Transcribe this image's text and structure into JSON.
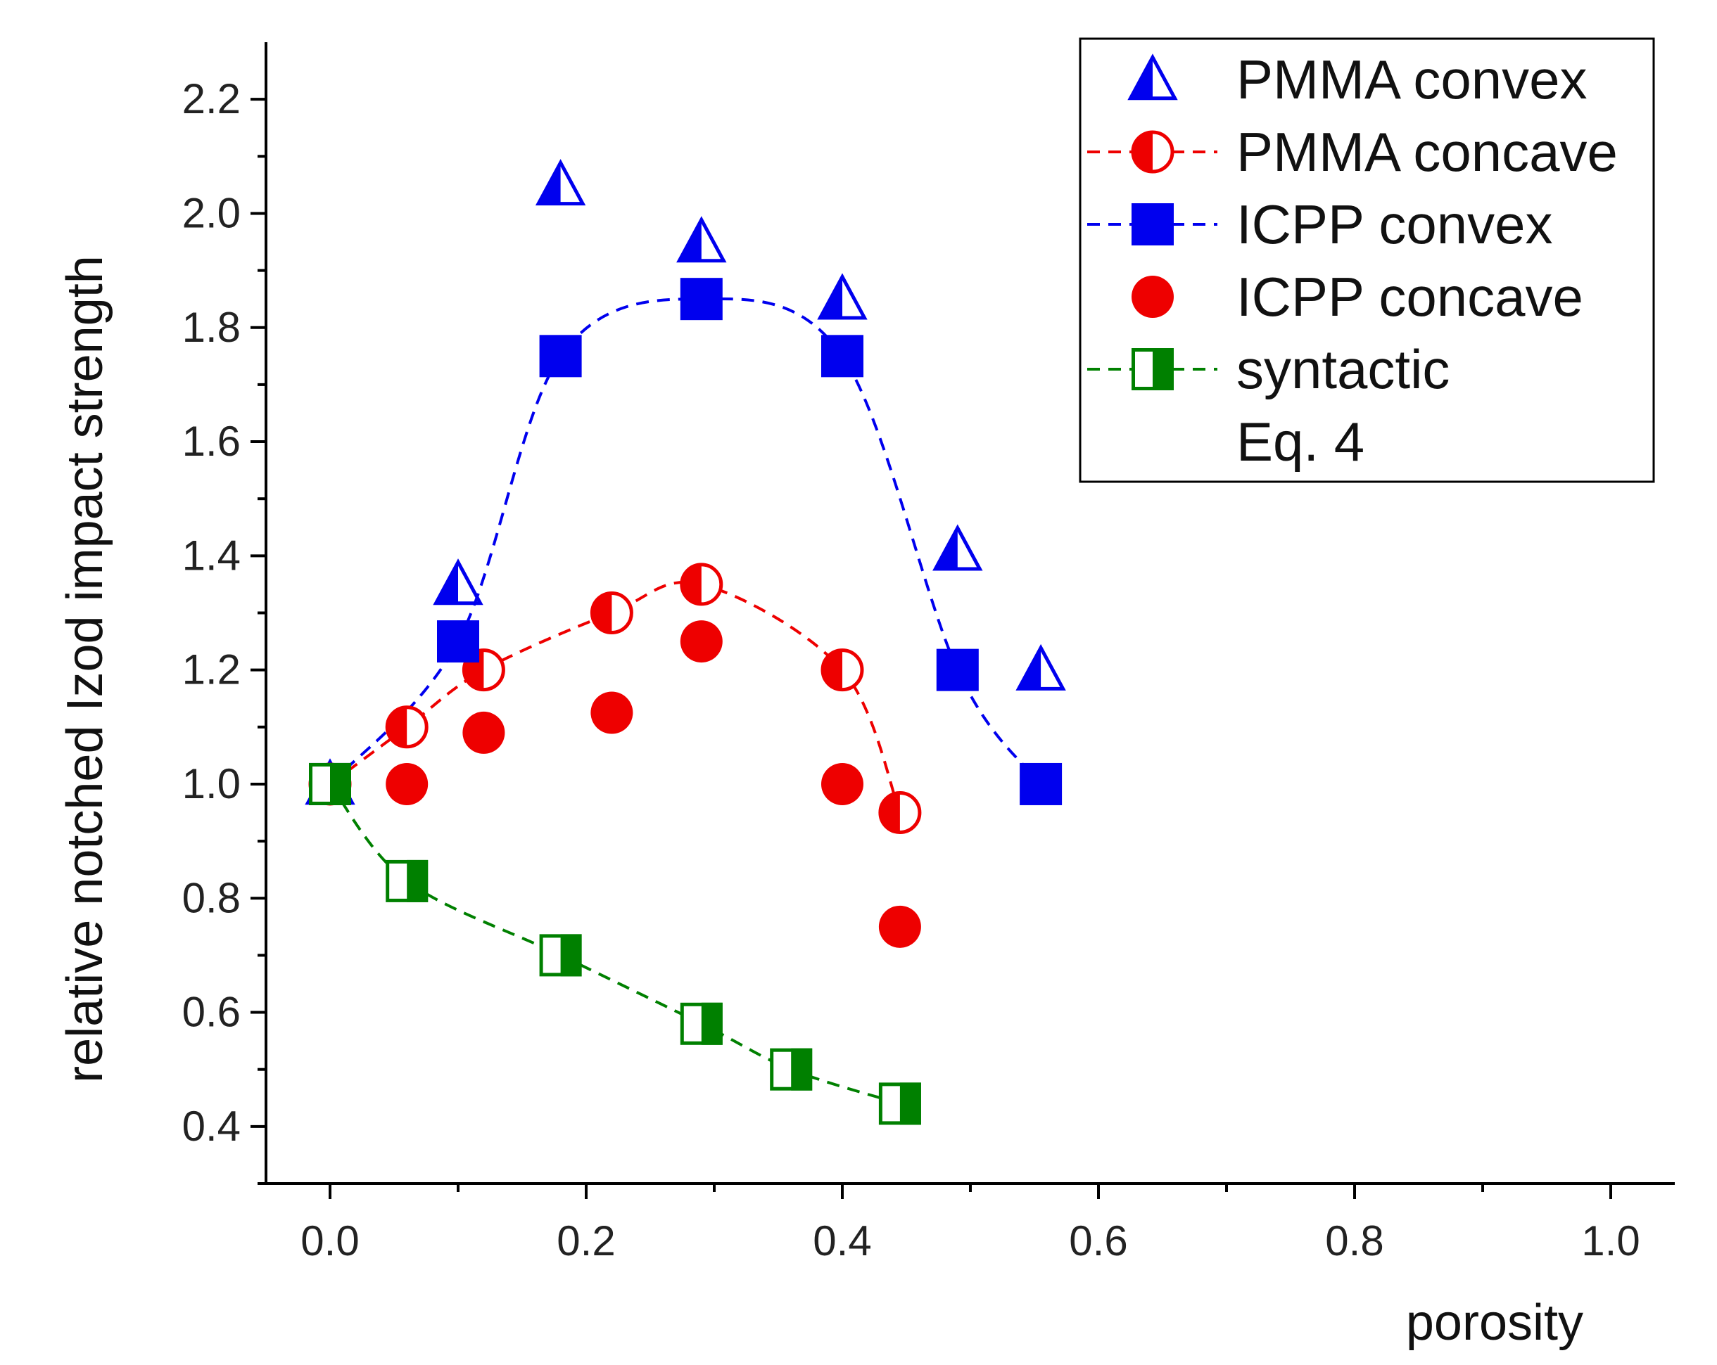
{
  "chart_data": {
    "type": "scatter",
    "title": "",
    "xlabel": "porosity",
    "ylabel": "relative notched Izod impact strength",
    "xlim": [
      -0.05,
      1.05
    ],
    "ylim": [
      0.3,
      2.3
    ],
    "xticks": [
      0.0,
      0.2,
      0.4,
      0.6,
      0.8,
      1.0
    ],
    "xtick_labels": [
      "0.0",
      "0.2",
      "0.4",
      "0.6",
      "0.8",
      "1.0"
    ],
    "yticks": [
      0.4,
      0.6,
      0.8,
      1.0,
      1.2,
      1.4,
      1.6,
      1.8,
      2.0,
      2.2
    ],
    "ytick_labels": [
      "0.4",
      "0.6",
      "0.8",
      "1.0",
      "1.2",
      "1.4",
      "1.6",
      "1.8",
      "2.0",
      "2.2"
    ],
    "legend_position": "top-right",
    "grid": false,
    "series": [
      {
        "name": "PMMA convex",
        "marker": "half-triangle",
        "color": "#0000ee",
        "line": false,
        "x": [
          0.0,
          0.1,
          0.18,
          0.29,
          0.4,
          0.49,
          0.555
        ],
        "y": [
          1.0,
          1.35,
          2.05,
          1.95,
          1.85,
          1.41,
          1.2
        ]
      },
      {
        "name": "PMMA concave",
        "marker": "half-circle",
        "color": "#ee0000",
        "line": true,
        "x": [
          0.0,
          0.06,
          0.12,
          0.22,
          0.29,
          0.4,
          0.445
        ],
        "y": [
          1.0,
          1.1,
          1.2,
          1.3,
          1.35,
          1.2,
          0.95
        ]
      },
      {
        "name": "ICPP convex",
        "marker": "square",
        "color": "#0000ee",
        "line": true,
        "x": [
          0.0,
          0.1,
          0.18,
          0.29,
          0.4,
          0.49,
          0.555
        ],
        "y": [
          1.0,
          1.25,
          1.75,
          1.85,
          1.75,
          1.2,
          1.0
        ]
      },
      {
        "name": "ICPP concave",
        "marker": "circle",
        "color": "#ee0000",
        "line": false,
        "x": [
          0.0,
          0.06,
          0.12,
          0.22,
          0.29,
          0.4,
          0.445
        ],
        "y": [
          1.0,
          1.0,
          1.09,
          1.125,
          1.25,
          1.0,
          0.75
        ]
      },
      {
        "name": "syntactic",
        "marker": "half-square",
        "color": "#008000",
        "line": true,
        "x": [
          0.0,
          0.06,
          0.18,
          0.29,
          0.36,
          0.445
        ],
        "y": [
          1.0,
          0.83,
          0.7,
          0.58,
          0.5,
          0.44
        ]
      }
    ],
    "legend": [
      {
        "label": "PMMA convex",
        "marker": "half-triangle",
        "color": "#0000ee",
        "line": false
      },
      {
        "label": "PMMA concave",
        "marker": "half-circle",
        "color": "#ee0000",
        "line": true
      },
      {
        "label": "ICPP convex",
        "marker": "square",
        "color": "#0000ee",
        "line": true
      },
      {
        "label": "ICPP concave",
        "marker": "circle",
        "color": "#ee0000",
        "line": false
      },
      {
        "label": "syntactic",
        "marker": "half-square",
        "color": "#008000",
        "line": true
      },
      {
        "label": "Eq. 4",
        "marker": "none",
        "color": "#000000",
        "line": false
      }
    ]
  }
}
